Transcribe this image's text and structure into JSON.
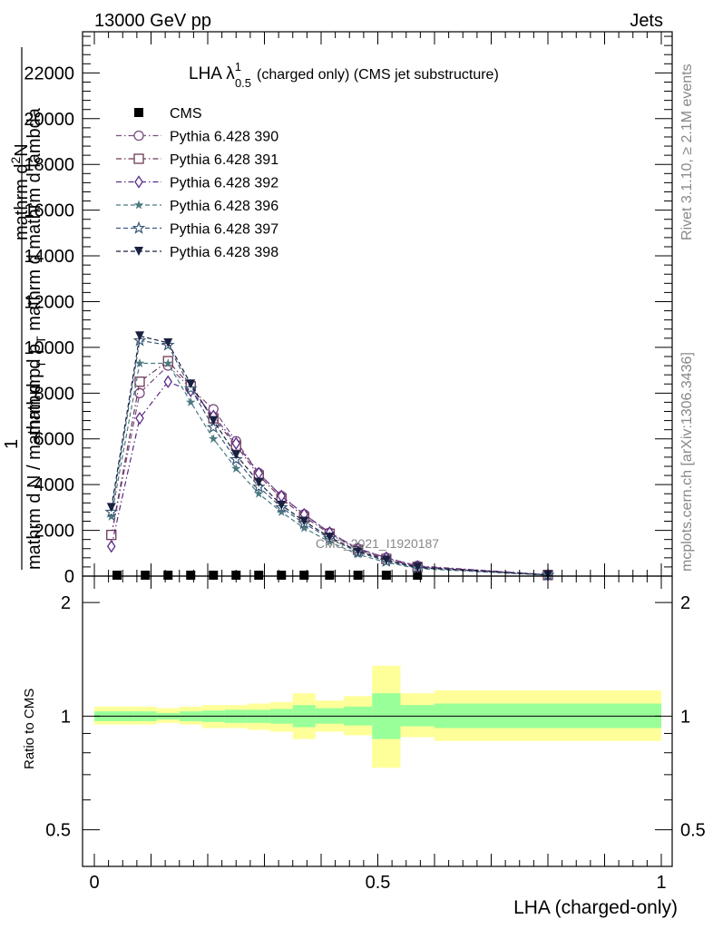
{
  "header": {
    "left": "13000 GeV pp",
    "right": "Jets"
  },
  "side_labels": {
    "rivet": "Rivet 3.1.10, ≥ 2.1M events",
    "mcplots": "mcplots.cern.ch [arXiv:1306.3436]"
  },
  "watermark": "CMS_2021_I1920187",
  "colors": {
    "CMS": "#000000",
    "Pythia 6.428 390": "#7a4a80",
    "Pythia 6.428 391": "#6e3a58",
    "Pythia 6.428 392": "#5a2a88",
    "Pythia 6.428 396": "#4a7a80",
    "Pythia 6.428 397": "#3a5a78",
    "Pythia 6.428 398": "#1a2040",
    "band_outer": "#ffff99",
    "band_inner": "#99ff99"
  },
  "chart_data": [
    {
      "type": "line",
      "title_main": "LHA λ",
      "title_sup": "1",
      "title_sub": "0.5",
      "title_rest": "(charged only) (CMS jet substructure)",
      "ylabel_top": "mathrm d",
      "ylabel_top_sup": "2",
      "ylabel_top_rest": "N",
      "ylabel_one": "1",
      "ylabel_mid": "mathrm d p",
      "ylabel_mid_sub": "T",
      "ylabel_mid_rest": " mathrm d mathrm d lambda",
      "ylabel_bottom": "mathrm d N / mathrm d p",
      "ylabel_bottom_sub": "T",
      "xlim": [
        0,
        1
      ],
      "ylim": [
        0,
        23800
      ],
      "yticks": [
        {
          "v": 0,
          "label": "0"
        },
        {
          "v": 2000,
          "label": "2000"
        },
        {
          "v": 4000,
          "label": "4000"
        },
        {
          "v": 6000,
          "label": "6000"
        },
        {
          "v": 8000,
          "label": "8000"
        },
        {
          "v": 10000,
          "label": "10000"
        },
        {
          "v": 12000,
          "label": "12000"
        },
        {
          "v": 14000,
          "label": "14000"
        },
        {
          "v": 16000,
          "label": "16000"
        },
        {
          "v": 18000,
          "label": "18000"
        },
        {
          "v": 20000,
          "label": "20000"
        },
        {
          "v": 22000,
          "label": "22000"
        }
      ],
      "series": [
        {
          "name": "CMS",
          "marker": "square-filled",
          "line": "none",
          "x": [
            0.04,
            0.09,
            0.13,
            0.17,
            0.21,
            0.25,
            0.29,
            0.33,
            0.37,
            0.415,
            0.465,
            0.515,
            0.57,
            0.8
          ],
          "y": [
            40,
            40,
            40,
            40,
            40,
            40,
            40,
            40,
            40,
            40,
            40,
            40,
            40,
            20
          ]
        },
        {
          "name": "Pythia 6.428 390",
          "marker": "circle-open",
          "line": "dashdot",
          "x": [
            0.03,
            0.08,
            0.13,
            0.17,
            0.21,
            0.25,
            0.29,
            0.33,
            0.37,
            0.415,
            0.465,
            0.515,
            0.57,
            0.8
          ],
          "y": [
            1800,
            8000,
            9200,
            8200,
            7300,
            5900,
            4500,
            3500,
            2700,
            1900,
            1200,
            800,
            450,
            60
          ]
        },
        {
          "name": "Pythia 6.428 391",
          "marker": "square-open",
          "line": "dashdot",
          "x": [
            0.03,
            0.08,
            0.13,
            0.17,
            0.21,
            0.25,
            0.29,
            0.33,
            0.37,
            0.415,
            0.465,
            0.515,
            0.57,
            0.8
          ],
          "y": [
            1800,
            8500,
            9400,
            8300,
            6900,
            5700,
            4400,
            3400,
            2600,
            1850,
            1150,
            750,
            400,
            50
          ]
        },
        {
          "name": "Pythia 6.428 392",
          "marker": "diamond-open",
          "line": "dashdot",
          "x": [
            0.03,
            0.08,
            0.13,
            0.17,
            0.21,
            0.25,
            0.29,
            0.33,
            0.37,
            0.415,
            0.465,
            0.515,
            0.57,
            0.8
          ],
          "y": [
            1300,
            6900,
            8500,
            8100,
            7000,
            5800,
            4500,
            3500,
            2700,
            1900,
            1200,
            800,
            420,
            55
          ]
        },
        {
          "name": "Pythia 6.428 396",
          "marker": "star-filled",
          "line": "dashed",
          "x": [
            0.03,
            0.08,
            0.13,
            0.17,
            0.21,
            0.25,
            0.29,
            0.33,
            0.37,
            0.415,
            0.465,
            0.515,
            0.57,
            0.8
          ],
          "y": [
            2600,
            9300,
            9300,
            7600,
            6000,
            4700,
            3600,
            2800,
            2100,
            1500,
            950,
            600,
            330,
            40
          ]
        },
        {
          "name": "Pythia 6.428 397",
          "marker": "star-open",
          "line": "dashed",
          "x": [
            0.03,
            0.08,
            0.13,
            0.17,
            0.21,
            0.25,
            0.29,
            0.33,
            0.37,
            0.415,
            0.465,
            0.515,
            0.57,
            0.8
          ],
          "y": [
            2800,
            10300,
            10100,
            8200,
            6500,
            5100,
            3900,
            3000,
            2300,
            1650,
            1050,
            650,
            360,
            45
          ]
        },
        {
          "name": "Pythia 6.428 398",
          "marker": "triangle-down-filled",
          "line": "dashed",
          "x": [
            0.03,
            0.08,
            0.13,
            0.17,
            0.21,
            0.25,
            0.29,
            0.33,
            0.37,
            0.415,
            0.465,
            0.515,
            0.57,
            0.8
          ],
          "y": [
            3000,
            10500,
            10200,
            8400,
            6800,
            5300,
            4100,
            3100,
            2400,
            1700,
            1100,
            700,
            380,
            50
          ]
        }
      ]
    },
    {
      "type": "area",
      "ylabel": "Ratio to CMS",
      "xlabel": "LHA (charged-only)",
      "xlim": [
        0,
        1
      ],
      "ylim": [
        0.4,
        2.35
      ],
      "ylog": true,
      "xticks": [
        {
          "v": 0,
          "label": "0"
        },
        {
          "v": 0.5,
          "label": "0.5"
        },
        {
          "v": 1,
          "label": "1"
        }
      ],
      "yticks": [
        {
          "v": 0.5,
          "label": "0.5"
        },
        {
          "v": 1,
          "label": "1"
        },
        {
          "v": 2,
          "label": "2"
        }
      ],
      "reference": 1,
      "bins": [
        {
          "lo": 0.0,
          "hi": 0.07,
          "outer": [
            0.95,
            1.06
          ],
          "inner": [
            0.97,
            1.03
          ]
        },
        {
          "lo": 0.07,
          "hi": 0.11,
          "outer": [
            0.95,
            1.06
          ],
          "inner": [
            0.97,
            1.03
          ]
        },
        {
          "lo": 0.11,
          "hi": 0.15,
          "outer": [
            0.96,
            1.05
          ],
          "inner": [
            0.98,
            1.02
          ]
        },
        {
          "lo": 0.15,
          "hi": 0.19,
          "outer": [
            0.95,
            1.06
          ],
          "inner": [
            0.97,
            1.03
          ]
        },
        {
          "lo": 0.19,
          "hi": 0.23,
          "outer": [
            0.93,
            1.07
          ],
          "inner": [
            0.965,
            1.035
          ]
        },
        {
          "lo": 0.23,
          "hi": 0.27,
          "outer": [
            0.93,
            1.07
          ],
          "inner": [
            0.96,
            1.04
          ]
        },
        {
          "lo": 0.27,
          "hi": 0.31,
          "outer": [
            0.92,
            1.08
          ],
          "inner": [
            0.96,
            1.04
          ]
        },
        {
          "lo": 0.31,
          "hi": 0.35,
          "outer": [
            0.91,
            1.09
          ],
          "inner": [
            0.955,
            1.045
          ]
        },
        {
          "lo": 0.35,
          "hi": 0.39,
          "outer": [
            0.87,
            1.15
          ],
          "inner": [
            0.935,
            1.07
          ]
        },
        {
          "lo": 0.39,
          "hi": 0.44,
          "outer": [
            0.91,
            1.1
          ],
          "inner": [
            0.955,
            1.05
          ]
        },
        {
          "lo": 0.44,
          "hi": 0.49,
          "outer": [
            0.89,
            1.13
          ],
          "inner": [
            0.945,
            1.06
          ]
        },
        {
          "lo": 0.49,
          "hi": 0.54,
          "outer": [
            0.73,
            1.36
          ],
          "inner": [
            0.87,
            1.15
          ]
        },
        {
          "lo": 0.54,
          "hi": 0.6,
          "outer": [
            0.88,
            1.15
          ],
          "inner": [
            0.94,
            1.07
          ]
        },
        {
          "lo": 0.6,
          "hi": 1.0,
          "outer": [
            0.86,
            1.17
          ],
          "inner": [
            0.93,
            1.08
          ]
        }
      ]
    }
  ]
}
